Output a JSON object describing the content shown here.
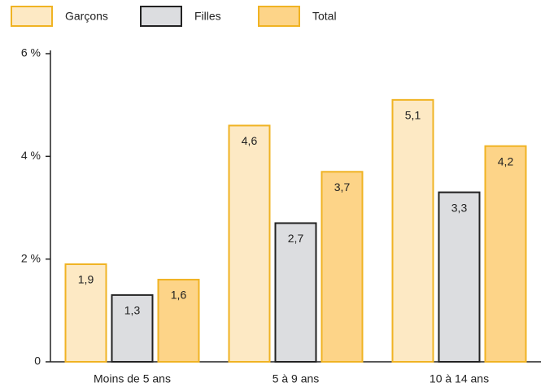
{
  "chart_data": {
    "type": "bar",
    "categories": [
      "Moins de 5 ans",
      "5 à 9 ans",
      "10 à 14 ans"
    ],
    "series": [
      {
        "name": "Garçons",
        "color": "#fde9c4",
        "values": [
          1.9,
          4.6,
          5.1
        ],
        "value_labels": [
          "1,9",
          "4,6",
          "5,1"
        ]
      },
      {
        "name": "Filles",
        "color": "#dcdde0",
        "values": [
          1.3,
          2.7,
          3.3
        ],
        "value_labels": [
          "1,3",
          "2,7",
          "3,3"
        ]
      },
      {
        "name": "Total",
        "color": "#fdd488",
        "values": [
          1.6,
          3.7,
          4.2
        ],
        "value_labels": [
          "1,6",
          "3,7",
          "4,2"
        ]
      }
    ],
    "ylim": [
      0,
      6
    ],
    "yticks": [
      0,
      {
        "value": 2,
        "label": "2 %"
      },
      {
        "value": 4,
        "label": "4 %"
      },
      {
        "value": 6,
        "label": "6 %"
      }
    ],
    "legend": "top"
  }
}
